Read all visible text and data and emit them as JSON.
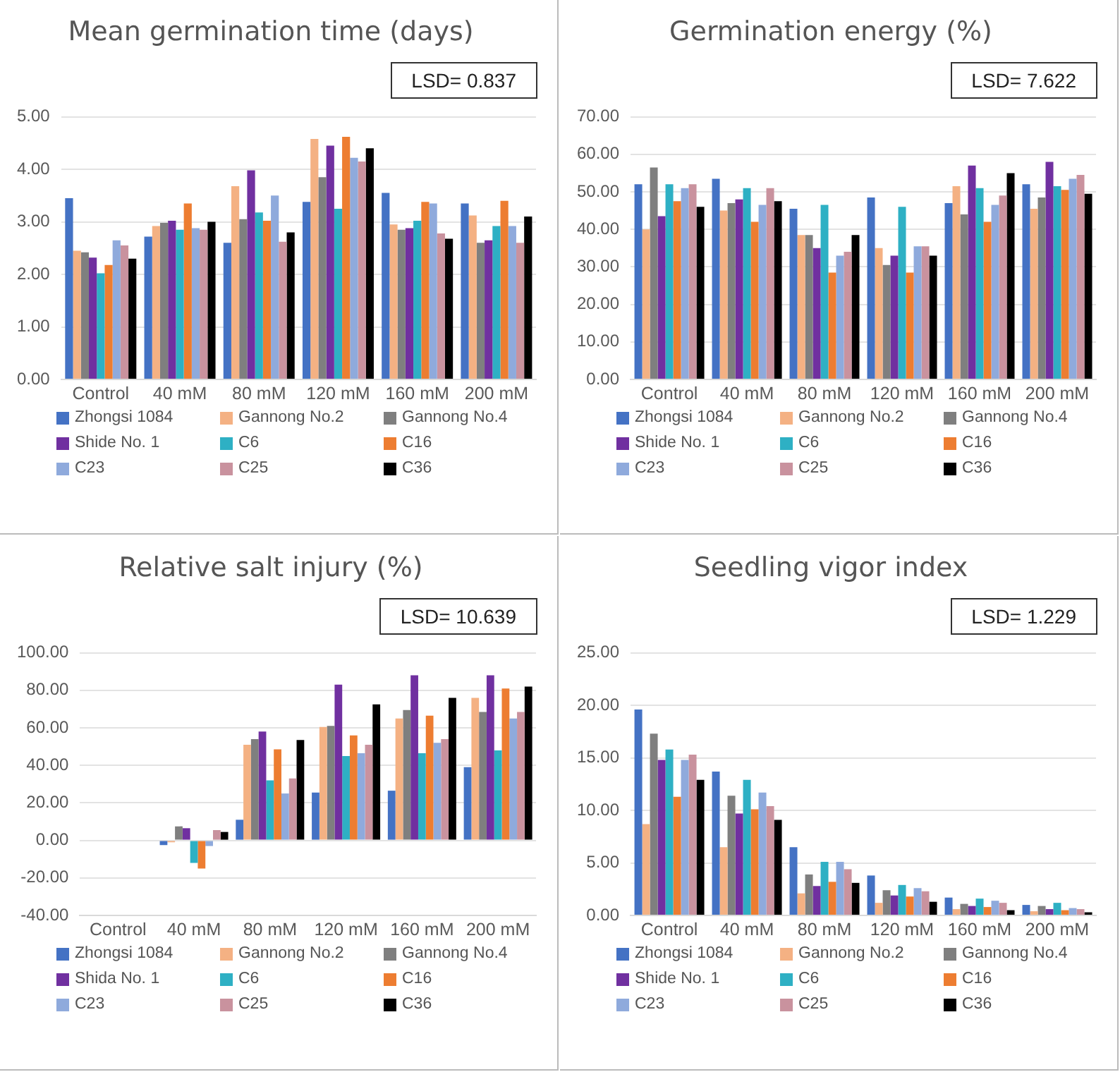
{
  "chart_data": [
    {
      "type": "bar",
      "title": "Mean germination time (days)",
      "categories": [
        "Control",
        "40 mM",
        "80 mM",
        "120 mM",
        "160 mM",
        "200 mM"
      ],
      "ylim": [
        0,
        5
      ],
      "yticks": [
        {
          "value": 0,
          "label": "0.00"
        },
        {
          "value": 1,
          "label": "1.00"
        },
        {
          "value": 2,
          "label": "2.00"
        },
        {
          "value": 3,
          "label": "3.00"
        },
        {
          "value": 4,
          "label": "4.00"
        },
        {
          "value": 5,
          "label": "5.00"
        }
      ],
      "grid": "y",
      "legend": "bottom",
      "annotations": [
        "LSD= 0.837"
      ],
      "series": [
        {
          "name": "Zhongsi 1084",
          "color": "#4472c4",
          "values": [
            3.45,
            2.72,
            2.6,
            3.38,
            3.55,
            3.35
          ]
        },
        {
          "name": "Gannong No.2",
          "color": "#f4b183",
          "values": [
            2.45,
            2.92,
            3.68,
            4.58,
            2.95,
            3.12
          ]
        },
        {
          "name": "Gannong No.4",
          "color": "#7f7f7f",
          "values": [
            2.42,
            2.98,
            3.05,
            3.85,
            2.85,
            2.6
          ]
        },
        {
          "name": "Shide No. 1",
          "color": "#7030a0",
          "values": [
            2.32,
            3.02,
            3.98,
            4.45,
            2.88,
            2.65
          ]
        },
        {
          "name": "C6",
          "color": "#2eb0c4",
          "values": [
            2.02,
            2.85,
            3.18,
            3.25,
            3.02,
            2.92
          ]
        },
        {
          "name": "C16",
          "color": "#ed7d31",
          "values": [
            2.18,
            3.35,
            3.02,
            4.62,
            3.38,
            3.4
          ]
        },
        {
          "name": "C23",
          "color": "#8faadc",
          "values": [
            2.65,
            2.88,
            3.5,
            4.22,
            3.35,
            2.92
          ]
        },
        {
          "name": "C25",
          "color": "#c9929e",
          "values": [
            2.55,
            2.85,
            2.62,
            4.15,
            2.78,
            2.6
          ]
        },
        {
          "name": "C36",
          "color": "#000000",
          "values": [
            2.3,
            3.0,
            2.8,
            4.4,
            2.68,
            3.1
          ]
        }
      ]
    },
    {
      "type": "bar",
      "title": "Germination energy (%)",
      "categories": [
        "Control",
        "40 mM",
        "80 mM",
        "120 mM",
        "160 mM",
        "200 mM"
      ],
      "ylim": [
        0,
        70
      ],
      "yticks": [
        {
          "value": 0,
          "label": "0.00"
        },
        {
          "value": 10,
          "label": "10.00"
        },
        {
          "value": 20,
          "label": "20.00"
        },
        {
          "value": 30,
          "label": "30.00"
        },
        {
          "value": 40,
          "label": "40.00"
        },
        {
          "value": 50,
          "label": "50.00"
        },
        {
          "value": 60,
          "label": "60.00"
        },
        {
          "value": 70,
          "label": "70.00"
        }
      ],
      "grid": "y",
      "legend": "bottom",
      "annotations": [
        "LSD= 7.622"
      ],
      "series": [
        {
          "name": "Zhongsi 1084",
          "color": "#4472c4",
          "values": [
            52,
            53.5,
            45.5,
            48.5,
            47,
            52
          ]
        },
        {
          "name": "Gannong No.2",
          "color": "#f4b183",
          "values": [
            40,
            45,
            38.5,
            35,
            51.5,
            45.5
          ]
        },
        {
          "name": "Gannong No.4",
          "color": "#7f7f7f",
          "values": [
            56.5,
            47,
            38.5,
            30.5,
            44,
            48.5
          ]
        },
        {
          "name": "Shide No. 1",
          "color": "#7030a0",
          "values": [
            43.5,
            48,
            35,
            33,
            57,
            58
          ]
        },
        {
          "name": "C6",
          "color": "#2eb0c4",
          "values": [
            52,
            51,
            46.5,
            46,
            51,
            51.5
          ]
        },
        {
          "name": "C16",
          "color": "#ed7d31",
          "values": [
            47.5,
            42,
            28.5,
            28.5,
            42,
            50.5
          ]
        },
        {
          "name": "C23",
          "color": "#8faadc",
          "values": [
            51,
            46.5,
            33,
            35.5,
            46.5,
            53.5
          ]
        },
        {
          "name": "C25",
          "color": "#c9929e",
          "values": [
            52,
            51,
            34,
            35.5,
            49,
            54.5
          ]
        },
        {
          "name": "C36",
          "color": "#000000",
          "values": [
            46,
            47.5,
            38.5,
            33,
            55,
            49.5
          ]
        }
      ]
    },
    {
      "type": "bar",
      "title": "Relative salt injury (%)",
      "categories": [
        "Control",
        "40 mM",
        "80 mM",
        "120 mM",
        "160 mM",
        "200 mM"
      ],
      "ylim": [
        -40,
        100
      ],
      "yticks": [
        {
          "value": -40,
          "label": "-40.00"
        },
        {
          "value": -20,
          "label": "-20.00"
        },
        {
          "value": 0,
          "label": "0.00"
        },
        {
          "value": 20,
          "label": "20.00"
        },
        {
          "value": 40,
          "label": "40.00"
        },
        {
          "value": 60,
          "label": "60.00"
        },
        {
          "value": 80,
          "label": "80.00"
        },
        {
          "value": 100,
          "label": "100.00"
        }
      ],
      "grid": "y",
      "legend": "bottom",
      "annotations": [
        "LSD= 10.639"
      ],
      "series": [
        {
          "name": "Zhongsi 1084",
          "color": "#4472c4",
          "values": [
            0,
            -2.5,
            11,
            25.5,
            26.5,
            39
          ]
        },
        {
          "name": "Gannong No.2",
          "color": "#f4b183",
          "values": [
            0,
            -1,
            51,
            60.5,
            65,
            76
          ]
        },
        {
          "name": "Gannong No.4",
          "color": "#7f7f7f",
          "values": [
            0,
            7.5,
            54,
            61,
            69.5,
            68.5
          ]
        },
        {
          "name": "Shida No. 1",
          "color": "#7030a0",
          "values": [
            0,
            6.5,
            58,
            83,
            88,
            88
          ]
        },
        {
          "name": "C6",
          "color": "#2eb0c4",
          "values": [
            0,
            -12,
            32,
            45,
            46.5,
            48
          ]
        },
        {
          "name": "C16",
          "color": "#ed7d31",
          "values": [
            0,
            -15,
            48.5,
            56,
            66.5,
            81
          ]
        },
        {
          "name": "C23",
          "color": "#8faadc",
          "values": [
            0,
            -3,
            25,
            46.5,
            52,
            65
          ]
        },
        {
          "name": "C25",
          "color": "#c9929e",
          "values": [
            0,
            5.5,
            33,
            51,
            54,
            68.5
          ]
        },
        {
          "name": "C36",
          "color": "#000000",
          "values": [
            0,
            4.5,
            53.5,
            72.5,
            76,
            82
          ]
        }
      ]
    },
    {
      "type": "bar",
      "title": "Seedling vigor index",
      "categories": [
        "Control",
        "40 mM",
        "80 mM",
        "120 mM",
        "160 mM",
        "200 mM"
      ],
      "ylim": [
        0,
        25
      ],
      "yticks": [
        {
          "value": 0,
          "label": "0.00"
        },
        {
          "value": 5,
          "label": "5.00"
        },
        {
          "value": 10,
          "label": "10.00"
        },
        {
          "value": 15,
          "label": "15.00"
        },
        {
          "value": 20,
          "label": "20.00"
        },
        {
          "value": 25,
          "label": "25.00"
        }
      ],
      "grid": "y",
      "legend": "bottom",
      "annotations": [
        "LSD= 1.229"
      ],
      "series": [
        {
          "name": "Zhongsi 1084",
          "color": "#4472c4",
          "values": [
            19.6,
            13.7,
            6.5,
            3.8,
            1.7,
            1.0
          ]
        },
        {
          "name": "Gannong No.2",
          "color": "#f4b183",
          "values": [
            8.7,
            6.5,
            2.1,
            1.2,
            0.6,
            0.4
          ]
        },
        {
          "name": "Gannong No.4",
          "color": "#7f7f7f",
          "values": [
            17.3,
            11.4,
            3.9,
            2.4,
            1.1,
            0.9
          ]
        },
        {
          "name": "Shide No. 1",
          "color": "#7030a0",
          "values": [
            14.8,
            9.7,
            2.8,
            1.9,
            0.9,
            0.6
          ]
        },
        {
          "name": "C6",
          "color": "#2eb0c4",
          "values": [
            15.8,
            12.9,
            5.1,
            2.9,
            1.6,
            1.2
          ]
        },
        {
          "name": "C16",
          "color": "#ed7d31",
          "values": [
            11.3,
            10.1,
            3.2,
            1.8,
            0.8,
            0.5
          ]
        },
        {
          "name": "C23",
          "color": "#8faadc",
          "values": [
            14.8,
            11.7,
            5.1,
            2.6,
            1.4,
            0.7
          ]
        },
        {
          "name": "C25",
          "color": "#c9929e",
          "values": [
            15.3,
            10.4,
            4.4,
            2.3,
            1.2,
            0.6
          ]
        },
        {
          "name": "C36",
          "color": "#000000",
          "values": [
            12.9,
            9.1,
            3.1,
            1.3,
            0.5,
            0.3
          ]
        }
      ]
    }
  ]
}
